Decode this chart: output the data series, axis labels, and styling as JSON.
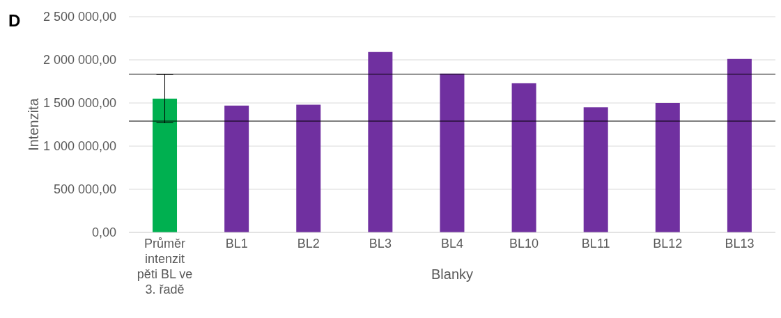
{
  "chart_data": {
    "type": "bar",
    "title": "D",
    "xlabel": "Blanky",
    "ylabel": "Intenzita",
    "categories": [
      "Průměr intenzit pěti BL ve 3. řadě",
      "BL1",
      "BL2",
      "BL3",
      "BL4",
      "BL10",
      "BL11",
      "BL12",
      "BL13"
    ],
    "values": [
      1550000,
      1470000,
      1480000,
      2090000,
      1840000,
      1730000,
      1450000,
      1500000,
      2010000
    ],
    "colors": [
      "#00b050",
      "#7030a0",
      "#7030a0",
      "#7030a0",
      "#7030a0",
      "#7030a0",
      "#7030a0",
      "#7030a0",
      "#7030a0"
    ],
    "errors": [
      280000,
      null,
      null,
      null,
      null,
      null,
      null,
      null,
      null
    ],
    "ylim": [
      0,
      2500000
    ],
    "yticks": [
      {
        "value": 0,
        "label": "0,00"
      },
      {
        "value": 500000,
        "label": "500 000,00"
      },
      {
        "value": 1000000,
        "label": "1 000 000,00"
      },
      {
        "value": 1500000,
        "label": "1 500 000,00"
      },
      {
        "value": 2000000,
        "label": "2 000 000,00"
      },
      {
        "value": 2500000,
        "label": "2 500 000,00"
      }
    ],
    "ref_lines": [
      {
        "axis": "y",
        "value": 1835000,
        "color": "#000000"
      },
      {
        "axis": "y",
        "value": 1290000,
        "color": "#000000"
      }
    ],
    "grid": "y",
    "legend": false
  }
}
